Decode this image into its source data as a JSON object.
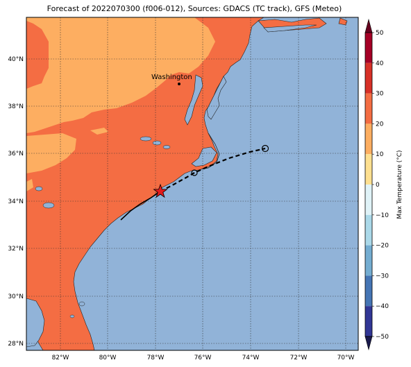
{
  "title": "Forecast of 2022070300 (f006-012), Sources: GDACS (TC track), GFS (Meteo)",
  "map": {
    "lat_ticks": [
      "40°N",
      "38°N",
      "36°N",
      "34°N",
      "32°N",
      "30°N",
      "28°N"
    ],
    "lon_ticks": [
      "82°W",
      "80°W",
      "78°W",
      "76°W",
      "74°W",
      "72°W",
      "70°W"
    ],
    "city_label": "Washington",
    "colors": {
      "ocean": "#91b3d8",
      "land_warm": "#f46d43",
      "land_mild": "#fdae61",
      "coast": "#222222"
    }
  },
  "colorbar": {
    "label": "Max Temperature (°C)",
    "ticks": [
      "50",
      "40",
      "30",
      "20",
      "10",
      "0",
      "−10",
      "−20",
      "−30",
      "−40",
      "−50"
    ],
    "colors": [
      "#a50026",
      "#d73027",
      "#f46d43",
      "#fdae61",
      "#fee090",
      "#e0f3f8",
      "#abd9e9",
      "#74add1",
      "#4575b4",
      "#313695"
    ]
  },
  "track": {
    "past_style": "solid",
    "forecast_style": "dashed",
    "current_marker": "star",
    "forecast_marker": "circle"
  }
}
